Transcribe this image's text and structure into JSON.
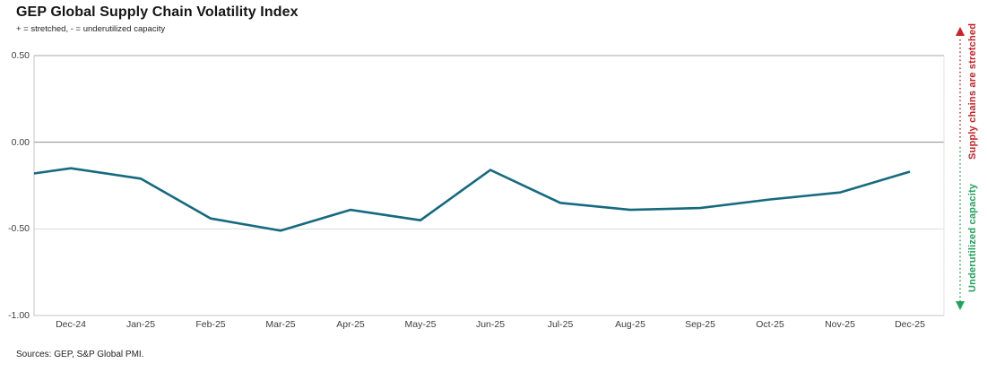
{
  "title": "GEP Global Supply Chain Volatility Index",
  "subtitle": "+ = stretched, - = underutilized capacity",
  "source_note": "Sources: GEP, S&P Global PMI.",
  "annotations": {
    "top": {
      "label": "Supply chains are stretched",
      "color": "#cb2127",
      "arrow": "up"
    },
    "bottom": {
      "label": "Underutilized capacity",
      "color": "#22a35c",
      "arrow": "down"
    }
  },
  "chart_data": {
    "type": "line",
    "title": "GEP Global Supply Chain Volatility Index",
    "categories": [
      "Dec-24",
      "Jan-25",
      "Feb-25",
      "Mar-25",
      "Apr-25",
      "May-25",
      "Jun-25",
      "Jul-25",
      "Aug-25",
      "Sep-25",
      "Oct-25",
      "Nov-25",
      "Dec-25"
    ],
    "values": [
      -0.15,
      -0.21,
      -0.44,
      -0.51,
      -0.39,
      -0.45,
      -0.16,
      -0.35,
      -0.39,
      -0.38,
      -0.33,
      -0.29,
      -0.17
    ],
    "lead_in_value": -0.18,
    "xlabel": "",
    "ylabel": "",
    "ylim": [
      -1.0,
      0.5
    ],
    "y_ticks": [
      {
        "value": 0.5,
        "label": "0.50"
      },
      {
        "value": 0.0,
        "label": "0.00"
      },
      {
        "value": -0.5,
        "label": "-0.50"
      },
      {
        "value": -1.0,
        "label": "-1.00"
      }
    ],
    "grid": "horizontal",
    "legend": "none",
    "line_color": "#156a80"
  }
}
